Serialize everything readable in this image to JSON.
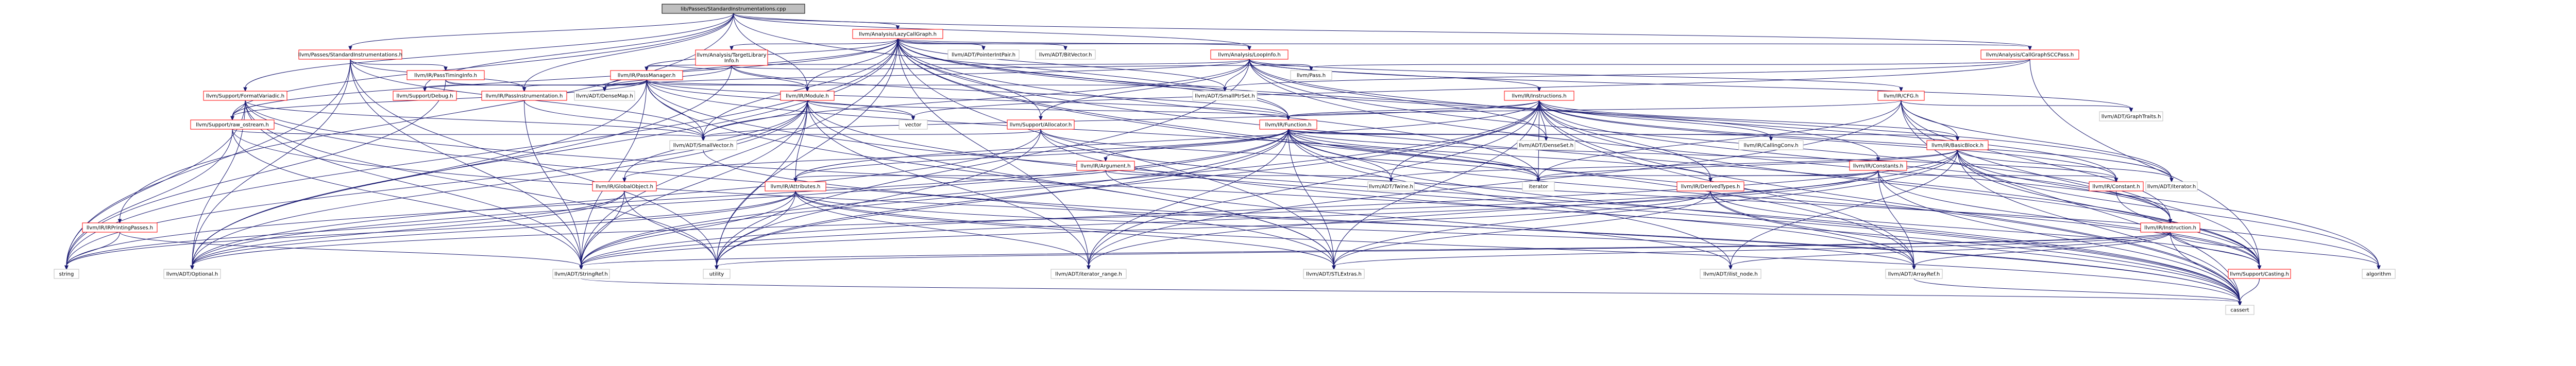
{
  "colors": {
    "root_fill": "#bfbfbf",
    "root_stroke": "#000000",
    "red_stroke": "#ff0000",
    "gray_stroke": "#bfbfbf",
    "node_fill": "#ffffff",
    "edge": "#191970",
    "background": "#ffffff"
  },
  "nodes": [
    {
      "id": "root",
      "label": "lib/Passes/StandardInstrumentations.cpp",
      "kind": "root"
    },
    {
      "id": "lazycg",
      "label": "llvm/Analysis/LazyCallGraph.h",
      "kind": "red"
    },
    {
      "id": "si_h",
      "label": "llvm/Passes/StandardInstrumentations.h",
      "kind": "red"
    },
    {
      "id": "tli",
      "label": "llvm/Analysis/TargetLibrary\nInfo.h",
      "kind": "red"
    },
    {
      "id": "ptrintpair",
      "label": "llvm/ADT/PointerIntPair.h",
      "kind": "gray"
    },
    {
      "id": "bitvector",
      "label": "llvm/ADT/BitVector.h",
      "kind": "gray"
    },
    {
      "id": "loopinfo",
      "label": "llvm/Analysis/LoopInfo.h",
      "kind": "red"
    },
    {
      "id": "cgscc",
      "label": "llvm/Analysis/CallGraphSCCPass.h",
      "kind": "red"
    },
    {
      "id": "passtiming",
      "label": "llvm/IR/PassTimingInfo.h",
      "kind": "red"
    },
    {
      "id": "passmgr",
      "label": "llvm/IR/PassManager.h",
      "kind": "red"
    },
    {
      "id": "irprinting",
      "label": "llvm/IR/IRPrintingPasses.h",
      "kind": "red"
    },
    {
      "id": "fmtvar",
      "label": "llvm/Support/FormatVariadic.h",
      "kind": "red"
    },
    {
      "id": "debug",
      "label": "llvm/Support/Debug.h",
      "kind": "red"
    },
    {
      "id": "rawostream",
      "label": "llvm/Support/raw_ostream.h",
      "kind": "red"
    },
    {
      "id": "passinstr",
      "label": "llvm/IR/PassInstrumentation.h",
      "kind": "red"
    },
    {
      "id": "densemap",
      "label": "llvm/ADT/DenseMap.h",
      "kind": "gray"
    },
    {
      "id": "module",
      "label": "llvm/IR/Module.h",
      "kind": "red"
    },
    {
      "id": "instructions",
      "label": "llvm/IR/Instructions.h",
      "kind": "red"
    },
    {
      "id": "pass",
      "label": "llvm/Pass.h",
      "kind": "gray"
    },
    {
      "id": "smallptrset",
      "label": "llvm/ADT/SmallPtrSet.h",
      "kind": "gray"
    },
    {
      "id": "ircfg",
      "label": "llvm/IR/CFG.h",
      "kind": "red"
    },
    {
      "id": "graphtraits",
      "label": "llvm/ADT/GraphTraits.h",
      "kind": "gray"
    },
    {
      "id": "allocator",
      "label": "llvm/Support/Allocator.h",
      "kind": "red"
    },
    {
      "id": "function",
      "label": "llvm/IR/Function.h",
      "kind": "red"
    },
    {
      "id": "vector",
      "label": "vector",
      "kind": "gray"
    },
    {
      "id": "smallvector",
      "label": "llvm/ADT/SmallVector.h",
      "kind": "gray"
    },
    {
      "id": "densetset",
      "label": "llvm/ADT/DenseSet.h",
      "kind": "gray"
    },
    {
      "id": "callingconv",
      "label": "llvm/IR/CallingConv.h",
      "kind": "gray"
    },
    {
      "id": "argument",
      "label": "llvm/IR/Argument.h",
      "kind": "red"
    },
    {
      "id": "globalobj",
      "label": "llvm/IR/GlobalObject.h",
      "kind": "red"
    },
    {
      "id": "attributes",
      "label": "llvm/IR/Attributes.h",
      "kind": "red"
    },
    {
      "id": "twine",
      "label": "llvm/ADT/Twine.h",
      "kind": "gray"
    },
    {
      "id": "iterator",
      "label": "iterator",
      "kind": "gray"
    },
    {
      "id": "derivedtypes",
      "label": "llvm/IR/DerivedTypes.h",
      "kind": "red"
    },
    {
      "id": "constants",
      "label": "llvm/IR/Constants.h",
      "kind": "red"
    },
    {
      "id": "basicblock",
      "label": "llvm/IR/BasicBlock.h",
      "kind": "red"
    },
    {
      "id": "constant",
      "label": "llvm/IR/Constant.h",
      "kind": "red"
    },
    {
      "id": "adtiterator",
      "label": "llvm/ADT/iterator.h",
      "kind": "gray"
    },
    {
      "id": "instruction",
      "label": "llvm/IR/Instruction.h",
      "kind": "red"
    },
    {
      "id": "string",
      "label": "string",
      "kind": "gray"
    },
    {
      "id": "optional",
      "label": "llvm/ADT/Optional.h",
      "kind": "gray"
    },
    {
      "id": "stringref",
      "label": "llvm/ADT/StringRef.h",
      "kind": "gray"
    },
    {
      "id": "utility",
      "label": "utility",
      "kind": "gray"
    },
    {
      "id": "iterrange",
      "label": "llvm/ADT/iterator_range.h",
      "kind": "gray"
    },
    {
      "id": "stlextras",
      "label": "llvm/ADT/STLExtras.h",
      "kind": "gray"
    },
    {
      "id": "ilistnode",
      "label": "llvm/ADT/ilist_node.h",
      "kind": "gray"
    },
    {
      "id": "arrayref",
      "label": "llvm/ADT/ArrayRef.h",
      "kind": "gray"
    },
    {
      "id": "casting",
      "label": "llvm/Support/Casting.h",
      "kind": "red"
    },
    {
      "id": "algorithm",
      "label": "algorithm",
      "kind": "gray"
    },
    {
      "id": "cassert",
      "label": "cassert",
      "kind": "gray"
    }
  ],
  "edges": [
    [
      "root",
      "lazycg"
    ],
    [
      "root",
      "si_h"
    ],
    [
      "root",
      "cgscc"
    ],
    [
      "root",
      "loopinfo"
    ],
    [
      "root",
      "module"
    ],
    [
      "root",
      "passinstr"
    ],
    [
      "root",
      "irprinting"
    ],
    [
      "root",
      "fmtvar"
    ],
    [
      "root",
      "debug"
    ],
    [
      "root",
      "rawostream"
    ],
    [
      "root",
      "function"
    ],
    [
      "lazycg",
      "tli"
    ],
    [
      "lazycg",
      "ptrintpair"
    ],
    [
      "lazycg",
      "bitvector"
    ],
    [
      "lazycg",
      "loopinfo"
    ],
    [
      "lazycg",
      "cgscc"
    ],
    [
      "lazycg",
      "passmgr"
    ],
    [
      "lazycg",
      "densemap"
    ],
    [
      "lazycg",
      "smallptrset"
    ],
    [
      "lazycg",
      "module"
    ],
    [
      "lazycg",
      "function"
    ],
    [
      "lazycg",
      "allocator"
    ],
    [
      "lazycg",
      "smallvector"
    ],
    [
      "lazycg",
      "constants"
    ],
    [
      "lazycg",
      "stlextras"
    ],
    [
      "lazycg",
      "stringref"
    ],
    [
      "lazycg",
      "iterrange"
    ],
    [
      "lazycg",
      "adtiterator"
    ],
    [
      "lazycg",
      "casting"
    ],
    [
      "lazycg",
      "rawostream"
    ],
    [
      "lazycg",
      "cassert"
    ],
    [
      "lazycg",
      "iterator"
    ],
    [
      "lazycg",
      "string"
    ],
    [
      "lazycg",
      "utility"
    ],
    [
      "lazycg",
      "arrayref"
    ],
    [
      "lazycg",
      "optional"
    ],
    [
      "si_h",
      "passtiming"
    ],
    [
      "si_h",
      "passinstr"
    ],
    [
      "si_h",
      "smallvector"
    ],
    [
      "si_h",
      "string"
    ],
    [
      "si_h",
      "stringref"
    ],
    [
      "si_h",
      "optional"
    ],
    [
      "si_h",
      "utility"
    ],
    [
      "tli",
      "pass"
    ],
    [
      "tli",
      "passmgr"
    ],
    [
      "tli",
      "module"
    ],
    [
      "tli",
      "function"
    ],
    [
      "tli",
      "densemap"
    ],
    [
      "tli",
      "optional"
    ],
    [
      "loopinfo",
      "pass"
    ],
    [
      "loopinfo",
      "ircfg"
    ],
    [
      "loopinfo",
      "instructions"
    ],
    [
      "loopinfo",
      "passmgr"
    ],
    [
      "loopinfo",
      "densemap"
    ],
    [
      "loopinfo",
      "smallptrset"
    ],
    [
      "loopinfo",
      "densetset"
    ],
    [
      "loopinfo",
      "graphtraits"
    ],
    [
      "loopinfo",
      "smallvector"
    ],
    [
      "loopinfo",
      "allocator"
    ],
    [
      "loopinfo",
      "algorithm"
    ],
    [
      "loopinfo",
      "utility"
    ],
    [
      "loopinfo",
      "instruction"
    ],
    [
      "loopinfo",
      "constant"
    ],
    [
      "cgscc",
      "pass"
    ],
    [
      "cgscc",
      "smallptrset"
    ],
    [
      "cgscc",
      "vector"
    ],
    [
      "cgscc",
      "casting"
    ],
    [
      "passtiming",
      "passinstr"
    ],
    [
      "passtiming",
      "densemap"
    ],
    [
      "passtiming",
      "string"
    ],
    [
      "passmgr",
      "module"
    ],
    [
      "passmgr",
      "function"
    ],
    [
      "passmgr",
      "passinstr"
    ],
    [
      "passmgr",
      "densemap"
    ],
    [
      "passmgr",
      "smallptrset"
    ],
    [
      "passmgr",
      "stringref"
    ],
    [
      "passmgr",
      "vector"
    ],
    [
      "passmgr",
      "smallvector"
    ],
    [
      "passmgr",
      "rawostream"
    ],
    [
      "passmgr",
      "debug"
    ],
    [
      "passmgr",
      "stlextras"
    ],
    [
      "passmgr",
      "iterator"
    ],
    [
      "passmgr",
      "cassert"
    ],
    [
      "passmgr",
      "optional"
    ],
    [
      "irprinting",
      "string"
    ],
    [
      "irprinting",
      "stringref"
    ],
    [
      "fmtvar",
      "smallvector"
    ],
    [
      "fmtvar",
      "stringref"
    ],
    [
      "fmtvar",
      "optional"
    ],
    [
      "fmtvar",
      "string"
    ],
    [
      "fmtvar",
      "utility"
    ],
    [
      "fmtvar",
      "rawostream"
    ],
    [
      "fmtvar",
      "arrayref"
    ],
    [
      "fmtvar",
      "stlextras"
    ],
    [
      "rawostream",
      "stringref"
    ],
    [
      "rawostream",
      "smallvector"
    ],
    [
      "rawostream",
      "string"
    ],
    [
      "rawostream",
      "cassert"
    ],
    [
      "passinstr",
      "smallvector"
    ],
    [
      "passinstr",
      "stringref"
    ],
    [
      "module",
      "function"
    ],
    [
      "module",
      "attributes"
    ],
    [
      "module",
      "globalobj"
    ],
    [
      "module",
      "stringref"
    ],
    [
      "module",
      "iterrange"
    ],
    [
      "module",
      "stlextras"
    ],
    [
      "module",
      "optional"
    ],
    [
      "module",
      "string"
    ],
    [
      "module",
      "vector"
    ],
    [
      "module",
      "cassert"
    ],
    [
      "module",
      "smallvector"
    ],
    [
      "module",
      "utility"
    ],
    [
      "instructions",
      "function"
    ],
    [
      "instructions",
      "basicblock"
    ],
    [
      "instructions",
      "constant"
    ],
    [
      "instructions",
      "derivedtypes"
    ],
    [
      "instructions",
      "instruction"
    ],
    [
      "instructions",
      "callingconv"
    ],
    [
      "instructions",
      "attributes"
    ],
    [
      "instructions",
      "twine"
    ],
    [
      "instructions",
      "iterator"
    ],
    [
      "instructions",
      "casting"
    ],
    [
      "instructions",
      "arrayref"
    ],
    [
      "instructions",
      "stlextras"
    ],
    [
      "instructions",
      "smallvector"
    ],
    [
      "instructions",
      "iterrange"
    ],
    [
      "instructions",
      "cassert"
    ],
    [
      "instructions",
      "stringref"
    ],
    [
      "instructions",
      "densetset"
    ],
    [
      "instructions",
      "adtiterator"
    ],
    [
      "instructions",
      "utility"
    ],
    [
      "ircfg",
      "basicblock"
    ],
    [
      "ircfg",
      "function"
    ],
    [
      "ircfg",
      "graphtraits"
    ],
    [
      "ircfg",
      "iterrange"
    ],
    [
      "ircfg",
      "adtiterator"
    ],
    [
      "ircfg",
      "casting"
    ],
    [
      "ircfg",
      "cassert"
    ],
    [
      "ircfg",
      "iterator"
    ],
    [
      "ircfg",
      "instruction"
    ],
    [
      "allocator",
      "smallvector"
    ],
    [
      "allocator",
      "optional"
    ],
    [
      "allocator",
      "utility"
    ],
    [
      "allocator",
      "cassert"
    ],
    [
      "allocator",
      "algorithm"
    ],
    [
      "allocator",
      "iterator"
    ],
    [
      "function",
      "argument"
    ],
    [
      "function",
      "basicblock"
    ],
    [
      "function",
      "callingconv"
    ],
    [
      "function",
      "densetset"
    ],
    [
      "function",
      "twine"
    ],
    [
      "function",
      "attributes"
    ],
    [
      "function",
      "globalobj"
    ],
    [
      "function",
      "derivedtypes"
    ],
    [
      "function",
      "iterator"
    ],
    [
      "function",
      "ilistnode"
    ],
    [
      "function",
      "iterrange"
    ],
    [
      "function",
      "stringref"
    ],
    [
      "function",
      "cassert"
    ],
    [
      "function",
      "string"
    ],
    [
      "function",
      "utility"
    ],
    [
      "function",
      "optional"
    ],
    [
      "function",
      "casting"
    ],
    [
      "function",
      "stlextras"
    ],
    [
      "function",
      "constant"
    ],
    [
      "argument",
      "attributes"
    ],
    [
      "argument",
      "twine"
    ],
    [
      "argument",
      "ilistnode"
    ],
    [
      "globalobj",
      "stringref"
    ],
    [
      "globalobj",
      "optional"
    ],
    [
      "globalobj",
      "utility"
    ],
    [
      "globalobj",
      "string"
    ],
    [
      "attributes",
      "optional"
    ],
    [
      "attributes",
      "stringref"
    ],
    [
      "attributes",
      "iterrange"
    ],
    [
      "attributes",
      "utility"
    ],
    [
      "attributes",
      "cassert"
    ],
    [
      "attributes",
      "string"
    ],
    [
      "attributes",
      "arrayref"
    ],
    [
      "attributes",
      "stlextras"
    ],
    [
      "derivedtypes",
      "stringref"
    ],
    [
      "derivedtypes",
      "casting"
    ],
    [
      "derivedtypes",
      "arrayref"
    ],
    [
      "derivedtypes",
      "stlextras"
    ],
    [
      "derivedtypes",
      "cassert"
    ],
    [
      "constants",
      "constant"
    ],
    [
      "constants",
      "derivedtypes"
    ],
    [
      "constants",
      "arrayref"
    ],
    [
      "constants",
      "casting"
    ],
    [
      "constants",
      "cassert"
    ],
    [
      "constants",
      "stringref"
    ],
    [
      "constants",
      "iterator"
    ],
    [
      "constants",
      "optional"
    ],
    [
      "basicblock",
      "instruction"
    ],
    [
      "basicblock",
      "twine"
    ],
    [
      "basicblock",
      "iterator"
    ],
    [
      "basicblock",
      "ilistnode"
    ],
    [
      "basicblock",
      "iterrange"
    ],
    [
      "basicblock",
      "adtiterator"
    ],
    [
      "basicblock",
      "stringref"
    ],
    [
      "basicblock",
      "cassert"
    ],
    [
      "basicblock",
      "casting"
    ],
    [
      "basicblock",
      "algorithm"
    ],
    [
      "basicblock",
      "stlextras"
    ],
    [
      "constant",
      "casting"
    ],
    [
      "instruction",
      "ilistnode"
    ],
    [
      "instruction",
      "casting"
    ],
    [
      "instruction",
      "stringref"
    ],
    [
      "instruction",
      "cassert"
    ],
    [
      "instruction",
      "arrayref"
    ],
    [
      "instruction",
      "utility"
    ],
    [
      "instruction",
      "algorithm"
    ],
    [
      "instruction",
      "stlextras"
    ],
    [
      "smallvector",
      "cassert"
    ],
    [
      "stringref",
      "cassert"
    ],
    [
      "casting",
      "cassert"
    ],
    [
      "arrayref",
      "cassert"
    ]
  ]
}
